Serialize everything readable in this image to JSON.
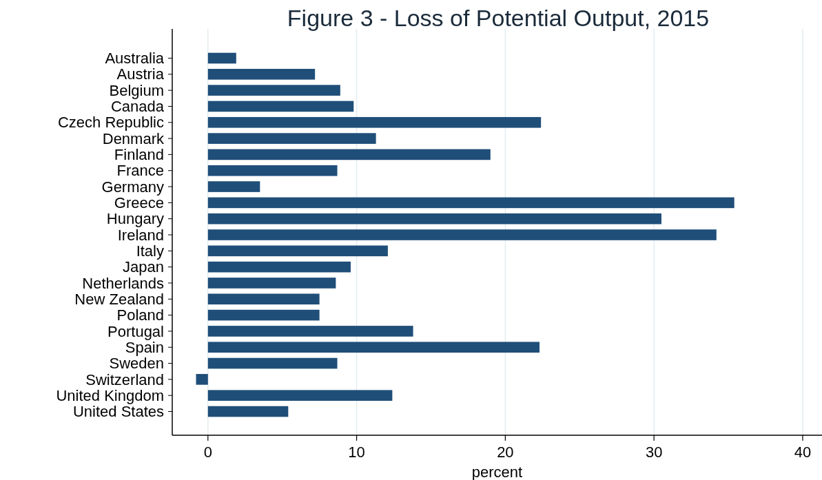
{
  "chart_data": {
    "type": "bar",
    "orientation": "horizontal",
    "title": "Figure 3 - Loss of Potential Output, 2015",
    "xlabel": "percent",
    "categories": [
      "Australia",
      "Austria",
      "Belgium",
      "Canada",
      "Czech Republic",
      "Denmark",
      "Finland",
      "France",
      "Germany",
      "Greece",
      "Hungary",
      "Ireland",
      "Italy",
      "Japan",
      "Netherlands",
      "New Zealand",
      "Poland",
      "Portugal",
      "Spain",
      "Sweden",
      "Switzerland",
      "United Kingdom",
      "United States"
    ],
    "values": [
      1.9,
      7.2,
      8.9,
      9.8,
      22.4,
      11.3,
      19.0,
      8.7,
      3.5,
      35.4,
      30.5,
      34.2,
      12.1,
      9.6,
      8.6,
      7.5,
      7.5,
      13.8,
      22.3,
      8.7,
      -0.8,
      12.4,
      5.4
    ],
    "color": "#1f4e79",
    "xlim": [
      -2.4,
      41.3
    ],
    "xticks": [
      0,
      10,
      20,
      30,
      40
    ],
    "grid": "x"
  }
}
